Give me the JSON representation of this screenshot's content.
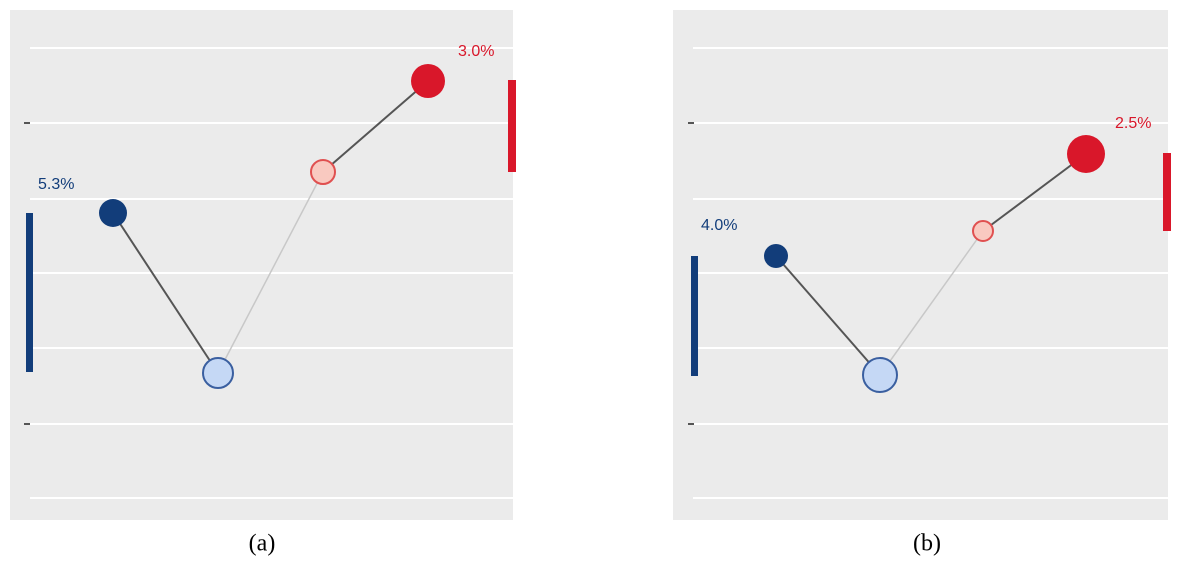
{
  "panels": [
    {
      "left_label": "5.3%",
      "right_label": "3.0%",
      "caption": "(a)"
    },
    {
      "left_label": "4.0%",
      "right_label": "2.5%",
      "caption": "(b)"
    }
  ]
}
